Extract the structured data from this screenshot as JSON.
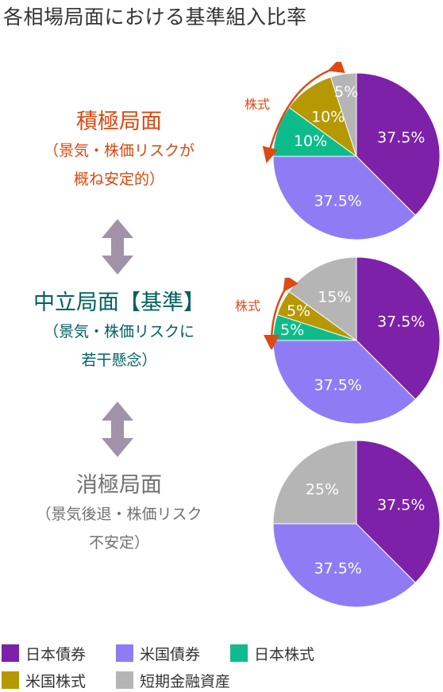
{
  "title": "各相場局面における基準組入比率",
  "colors": {
    "japan_bond": "#7c21a8",
    "us_bond": "#8f7cf5",
    "japan_stock": "#0ebc8b",
    "us_stock": "#b59802",
    "short_term": "#b5b5b5",
    "phase_active": "#d9480f",
    "phase_neutral": "#006060",
    "phase_defensive": "#707070",
    "stock_arrow": "#dd4a16",
    "double_arrow": "#a192aa"
  },
  "phases": [
    {
      "name": "積極局面",
      "desc_line1": "（景気・株価リスクが",
      "desc_line2": "概ね安定的）"
    },
    {
      "name": "中立局面【基準】",
      "desc_line1": "（景気・株価リスクに",
      "desc_line2": "若干懸念）"
    },
    {
      "name": "消極局面",
      "desc_line1": "（景気後退・株価リスク",
      "desc_line2": "不安定）"
    }
  ],
  "stock_label": "株式",
  "legend": [
    {
      "label": "日本債券",
      "color_key": "japan_bond"
    },
    {
      "label": "米国債券",
      "color_key": "us_bond"
    },
    {
      "label": "日本株式",
      "color_key": "japan_stock"
    },
    {
      "label": "米国株式",
      "color_key": "us_stock"
    },
    {
      "label": "短期金融資産",
      "color_key": "short_term"
    }
  ],
  "chart_data": [
    {
      "type": "pie",
      "phase": "積極局面",
      "slices": [
        {
          "name": "日本債券",
          "value": 37.5,
          "label": "37.5%",
          "color_key": "japan_bond"
        },
        {
          "name": "米国債券",
          "value": 37.5,
          "label": "37.5%",
          "color_key": "us_bond"
        },
        {
          "name": "日本株式",
          "value": 10,
          "label": "10%",
          "color_key": "japan_stock"
        },
        {
          "name": "米国株式",
          "value": 10,
          "label": "10%",
          "color_key": "us_stock"
        },
        {
          "name": "短期金融資産",
          "value": 5,
          "label": "5%",
          "color_key": "short_term"
        }
      ]
    },
    {
      "type": "pie",
      "phase": "中立局面【基準】",
      "slices": [
        {
          "name": "日本債券",
          "value": 37.5,
          "label": "37.5%",
          "color_key": "japan_bond"
        },
        {
          "name": "米国債券",
          "value": 37.5,
          "label": "37.5%",
          "color_key": "us_bond"
        },
        {
          "name": "日本株式",
          "value": 5,
          "label": "5%",
          "color_key": "japan_stock"
        },
        {
          "name": "米国株式",
          "value": 5,
          "label": "5%",
          "color_key": "us_stock"
        },
        {
          "name": "短期金融資産",
          "value": 15,
          "label": "15%",
          "color_key": "short_term"
        }
      ]
    },
    {
      "type": "pie",
      "phase": "消極局面",
      "slices": [
        {
          "name": "日本債券",
          "value": 37.5,
          "label": "37.5%",
          "color_key": "japan_bond"
        },
        {
          "name": "米国債券",
          "value": 37.5,
          "label": "37.5%",
          "color_key": "us_bond"
        },
        {
          "name": "短期金融資産",
          "value": 25,
          "label": "25%",
          "color_key": "short_term"
        }
      ]
    }
  ]
}
